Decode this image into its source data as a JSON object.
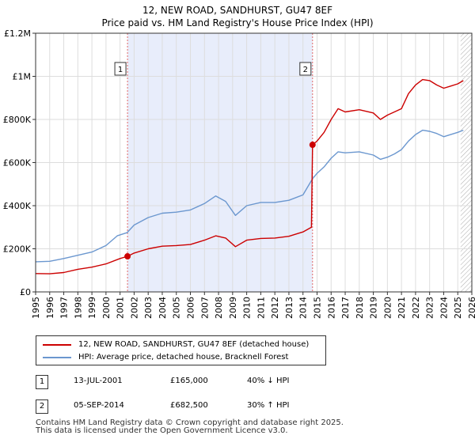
{
  "chart_data": {
    "type": "line",
    "title": "12, NEW ROAD, SANDHURST, GU47 8EF",
    "subtitle": "Price paid vs. HM Land Registry's House Price Index (HPI)",
    "xlim": [
      1995,
      2026
    ],
    "ylim": [
      0,
      1200000
    ],
    "x_ticks": [
      1995,
      1996,
      1997,
      1998,
      1999,
      2000,
      2001,
      2002,
      2003,
      2004,
      2005,
      2006,
      2007,
      2008,
      2009,
      2010,
      2011,
      2012,
      2013,
      2014,
      2015,
      2016,
      2017,
      2018,
      2019,
      2020,
      2021,
      2022,
      2023,
      2024,
      2025,
      2026
    ],
    "y_ticks": [
      {
        "value": 0,
        "label": "£0"
      },
      {
        "value": 200000,
        "label": "£200K"
      },
      {
        "value": 400000,
        "label": "£400K"
      },
      {
        "value": 600000,
        "label": "£600K"
      },
      {
        "value": 800000,
        "label": "£800K"
      },
      {
        "value": 1000000,
        "label": "£1M"
      },
      {
        "value": 1200000,
        "label": "£1.2M"
      }
    ],
    "grid": true,
    "shaded_region": [
      2001.53,
      2014.68
    ],
    "future_hatch_from": 2025.2,
    "series": [
      {
        "name": "12, NEW ROAD, SANDHURST, GU47 8EF (detached house)",
        "color": "#cc0000",
        "points": [
          [
            1995,
            85000
          ],
          [
            1996,
            84000
          ],
          [
            1997,
            90000
          ],
          [
            1998,
            105000
          ],
          [
            1999,
            115000
          ],
          [
            2000,
            130000
          ],
          [
            2001,
            155000
          ],
          [
            2001.53,
            165000
          ],
          [
            2002,
            180000
          ],
          [
            2003,
            200000
          ],
          [
            2004,
            212000
          ],
          [
            2005,
            215000
          ],
          [
            2006,
            220000
          ],
          [
            2007,
            240000
          ],
          [
            2007.8,
            260000
          ],
          [
            2008.5,
            250000
          ],
          [
            2009.2,
            210000
          ],
          [
            2010,
            240000
          ],
          [
            2011,
            248000
          ],
          [
            2012,
            250000
          ],
          [
            2013,
            258000
          ],
          [
            2014,
            278000
          ],
          [
            2014.6,
            300000
          ],
          [
            2014.68,
            682500
          ],
          [
            2015,
            700000
          ],
          [
            2015.5,
            740000
          ],
          [
            2016,
            800000
          ],
          [
            2016.5,
            850000
          ],
          [
            2017,
            835000
          ],
          [
            2018,
            845000
          ],
          [
            2019,
            830000
          ],
          [
            2019.5,
            800000
          ],
          [
            2020,
            820000
          ],
          [
            2020.5,
            835000
          ],
          [
            2021,
            850000
          ],
          [
            2021.5,
            920000
          ],
          [
            2022,
            960000
          ],
          [
            2022.5,
            985000
          ],
          [
            2023,
            980000
          ],
          [
            2023.5,
            960000
          ],
          [
            2024,
            945000
          ],
          [
            2024.5,
            955000
          ],
          [
            2025,
            965000
          ],
          [
            2025.4,
            980000
          ]
        ]
      },
      {
        "name": "HPI: Average price, detached house, Bracknell Forest",
        "color": "#6b97cf",
        "points": [
          [
            1995,
            140000
          ],
          [
            1996,
            142000
          ],
          [
            1997,
            155000
          ],
          [
            1998,
            170000
          ],
          [
            1999,
            185000
          ],
          [
            2000,
            215000
          ],
          [
            2000.8,
            260000
          ],
          [
            2001.5,
            275000
          ],
          [
            2002,
            310000
          ],
          [
            2003,
            345000
          ],
          [
            2004,
            365000
          ],
          [
            2005,
            370000
          ],
          [
            2006,
            380000
          ],
          [
            2007,
            410000
          ],
          [
            2007.8,
            445000
          ],
          [
            2008.5,
            420000
          ],
          [
            2009.2,
            355000
          ],
          [
            2010,
            400000
          ],
          [
            2011,
            415000
          ],
          [
            2012,
            415000
          ],
          [
            2013,
            425000
          ],
          [
            2014,
            450000
          ],
          [
            2014.68,
            525000
          ],
          [
            2015,
            550000
          ],
          [
            2015.5,
            580000
          ],
          [
            2016,
            620000
          ],
          [
            2016.5,
            650000
          ],
          [
            2017,
            645000
          ],
          [
            2018,
            650000
          ],
          [
            2019,
            635000
          ],
          [
            2019.5,
            615000
          ],
          [
            2020,
            625000
          ],
          [
            2020.5,
            640000
          ],
          [
            2021,
            660000
          ],
          [
            2021.5,
            700000
          ],
          [
            2022,
            730000
          ],
          [
            2022.5,
            750000
          ],
          [
            2023,
            745000
          ],
          [
            2023.5,
            735000
          ],
          [
            2024,
            720000
          ],
          [
            2024.5,
            730000
          ],
          [
            2025,
            740000
          ],
          [
            2025.4,
            750000
          ]
        ]
      }
    ],
    "markers": [
      {
        "label": "1",
        "x": 2001.53,
        "y": 165000
      },
      {
        "label": "2",
        "x": 2014.68,
        "y": 682500
      }
    ]
  },
  "legend": {
    "items": [
      {
        "label": "12, NEW ROAD, SANDHURST, GU47 8EF (detached house)",
        "color": "#cc0000"
      },
      {
        "label": "HPI: Average price, detached house, Bracknell Forest",
        "color": "#6b97cf"
      }
    ]
  },
  "sales": [
    {
      "num": "1",
      "date": "13-JUL-2001",
      "price": "£165,000",
      "hpi": "40% ↓ HPI"
    },
    {
      "num": "2",
      "date": "05-SEP-2014",
      "price": "£682,500",
      "hpi": "30% ↑ HPI"
    }
  ],
  "footer": {
    "line1": "Contains HM Land Registry data © Crown copyright and database right 2025.",
    "line2": "This data is licensed under the Open Government Licence v3.0."
  }
}
